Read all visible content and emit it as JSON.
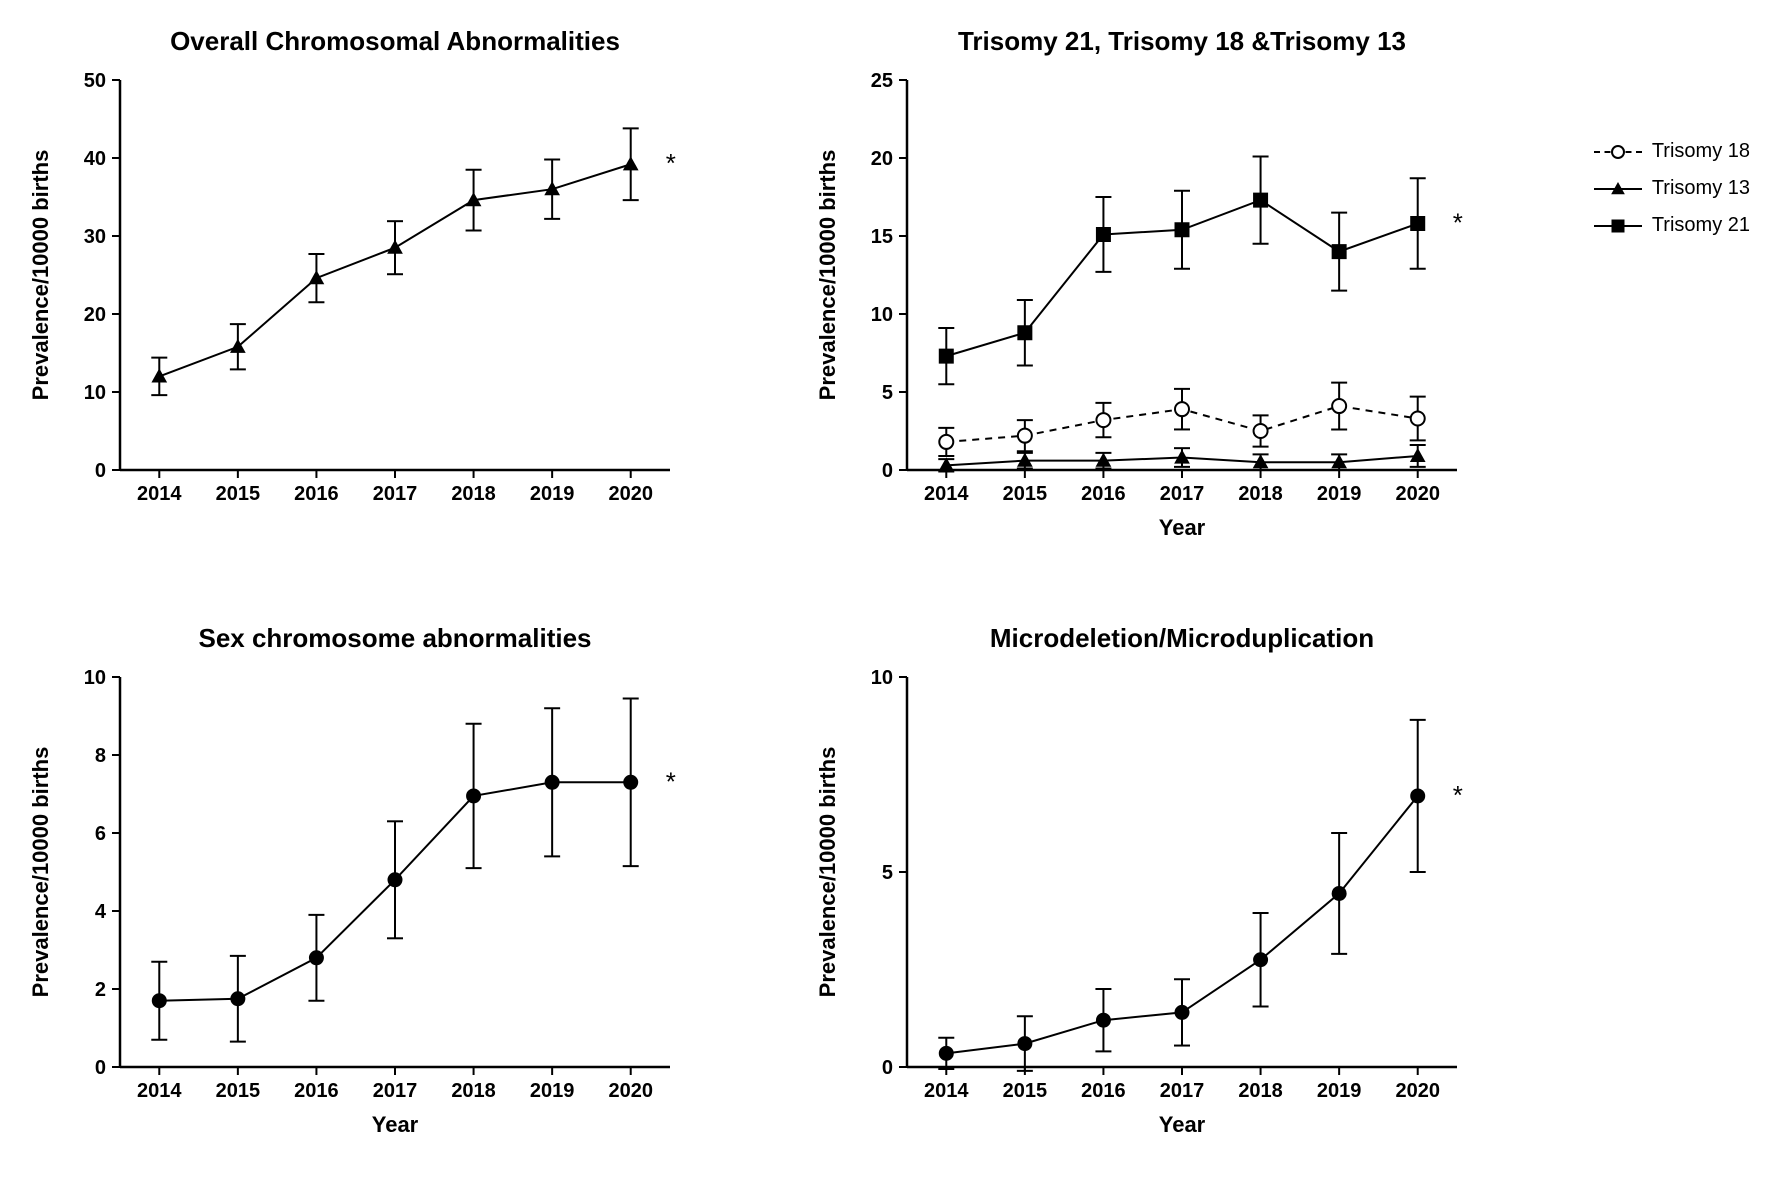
{
  "figure": {
    "background_color": "#ffffff",
    "grid": {
      "rows": 2,
      "cols": 2
    },
    "colors": {
      "axis": "#000000",
      "line": "#000000",
      "marker_fill": "#000000",
      "marker_stroke": "#000000",
      "text": "#000000"
    },
    "title_fontsize": 26,
    "title_fontweight": "bold",
    "axis_label_fontsize": 22,
    "axis_label_fontweight": "bold",
    "tick_fontsize": 20,
    "tick_fontweight": "bold",
    "line_width": 2,
    "marker_size": 7,
    "error_cap_width": 8,
    "years": [
      "2014",
      "2015",
      "2016",
      "2017",
      "2018",
      "2019",
      "2020"
    ]
  },
  "legend": {
    "fontsize": 20,
    "items": [
      {
        "label": "Trisomy 18",
        "marker": "open-circle",
        "line_style": "dashed"
      },
      {
        "label": "Trisomy 13",
        "marker": "triangle",
        "line_style": "solid"
      },
      {
        "label": "Trisomy 21",
        "marker": "square",
        "line_style": "solid"
      }
    ]
  },
  "panels": {
    "overall": {
      "title": "Overall Chromosomal Abnormalities",
      "ylabel": "Prevalence/10000 births",
      "xlabel": "",
      "ylim": [
        0,
        50
      ],
      "ytick_step": 10,
      "yticks": [
        0,
        10,
        20,
        30,
        40,
        50
      ],
      "significance": "*",
      "series": [
        {
          "name": "overall",
          "marker": "triangle",
          "line_style": "solid",
          "values": [
            12.0,
            15.8,
            24.6,
            28.5,
            34.6,
            36.0,
            39.2
          ],
          "err": [
            2.4,
            2.9,
            3.1,
            3.4,
            3.9,
            3.8,
            4.6
          ]
        }
      ]
    },
    "trisomy": {
      "title": "Trisomy 21, Trisomy 18 &Trisomy 13",
      "ylabel": "Prevalence/10000 births",
      "xlabel": "Year",
      "ylim": [
        0,
        25
      ],
      "ytick_step": 5,
      "yticks": [
        0,
        5,
        10,
        15,
        20,
        25
      ],
      "significance": "*",
      "series": [
        {
          "name": "trisomy21",
          "marker": "square",
          "line_style": "solid",
          "values": [
            7.3,
            8.8,
            15.1,
            15.4,
            17.3,
            14.0,
            15.8
          ],
          "err": [
            1.8,
            2.1,
            2.4,
            2.5,
            2.8,
            2.5,
            2.9
          ]
        },
        {
          "name": "trisomy18",
          "marker": "open-circle",
          "line_style": "dashed",
          "values": [
            1.8,
            2.2,
            3.2,
            3.9,
            2.5,
            4.1,
            3.3
          ],
          "err": [
            0.9,
            1.0,
            1.1,
            1.3,
            1.0,
            1.5,
            1.4
          ]
        },
        {
          "name": "trisomy13",
          "marker": "triangle",
          "line_style": "solid",
          "values": [
            0.3,
            0.6,
            0.6,
            0.8,
            0.5,
            0.5,
            0.9
          ],
          "err": [
            0.4,
            0.5,
            0.5,
            0.6,
            0.5,
            0.5,
            0.7
          ]
        }
      ]
    },
    "sex": {
      "title": "Sex chromosome abnormalities",
      "ylabel": "Prevalence/10000 births",
      "xlabel": "Year",
      "ylim": [
        0,
        10
      ],
      "ytick_step": 2,
      "yticks": [
        0,
        2,
        4,
        6,
        8,
        10
      ],
      "significance": "*",
      "series": [
        {
          "name": "sex",
          "marker": "circle",
          "line_style": "solid",
          "values": [
            1.7,
            1.75,
            2.8,
            4.8,
            6.95,
            7.3,
            7.3
          ],
          "err": [
            1.0,
            1.1,
            1.1,
            1.5,
            1.85,
            1.9,
            2.15
          ]
        }
      ]
    },
    "micro": {
      "title": "Microdeletion/Microduplication",
      "ylabel": "Prevalence/10000 births",
      "xlabel": "Year",
      "ylim": [
        0,
        10
      ],
      "ytick_step": 5,
      "yticks": [
        0,
        5,
        10
      ],
      "significance": "*",
      "series": [
        {
          "name": "micro",
          "marker": "circle",
          "line_style": "solid",
          "values": [
            0.35,
            0.6,
            1.2,
            1.4,
            2.75,
            4.45,
            6.95
          ],
          "err": [
            0.4,
            0.7,
            0.8,
            0.85,
            1.2,
            1.55,
            1.95
          ]
        }
      ]
    }
  }
}
